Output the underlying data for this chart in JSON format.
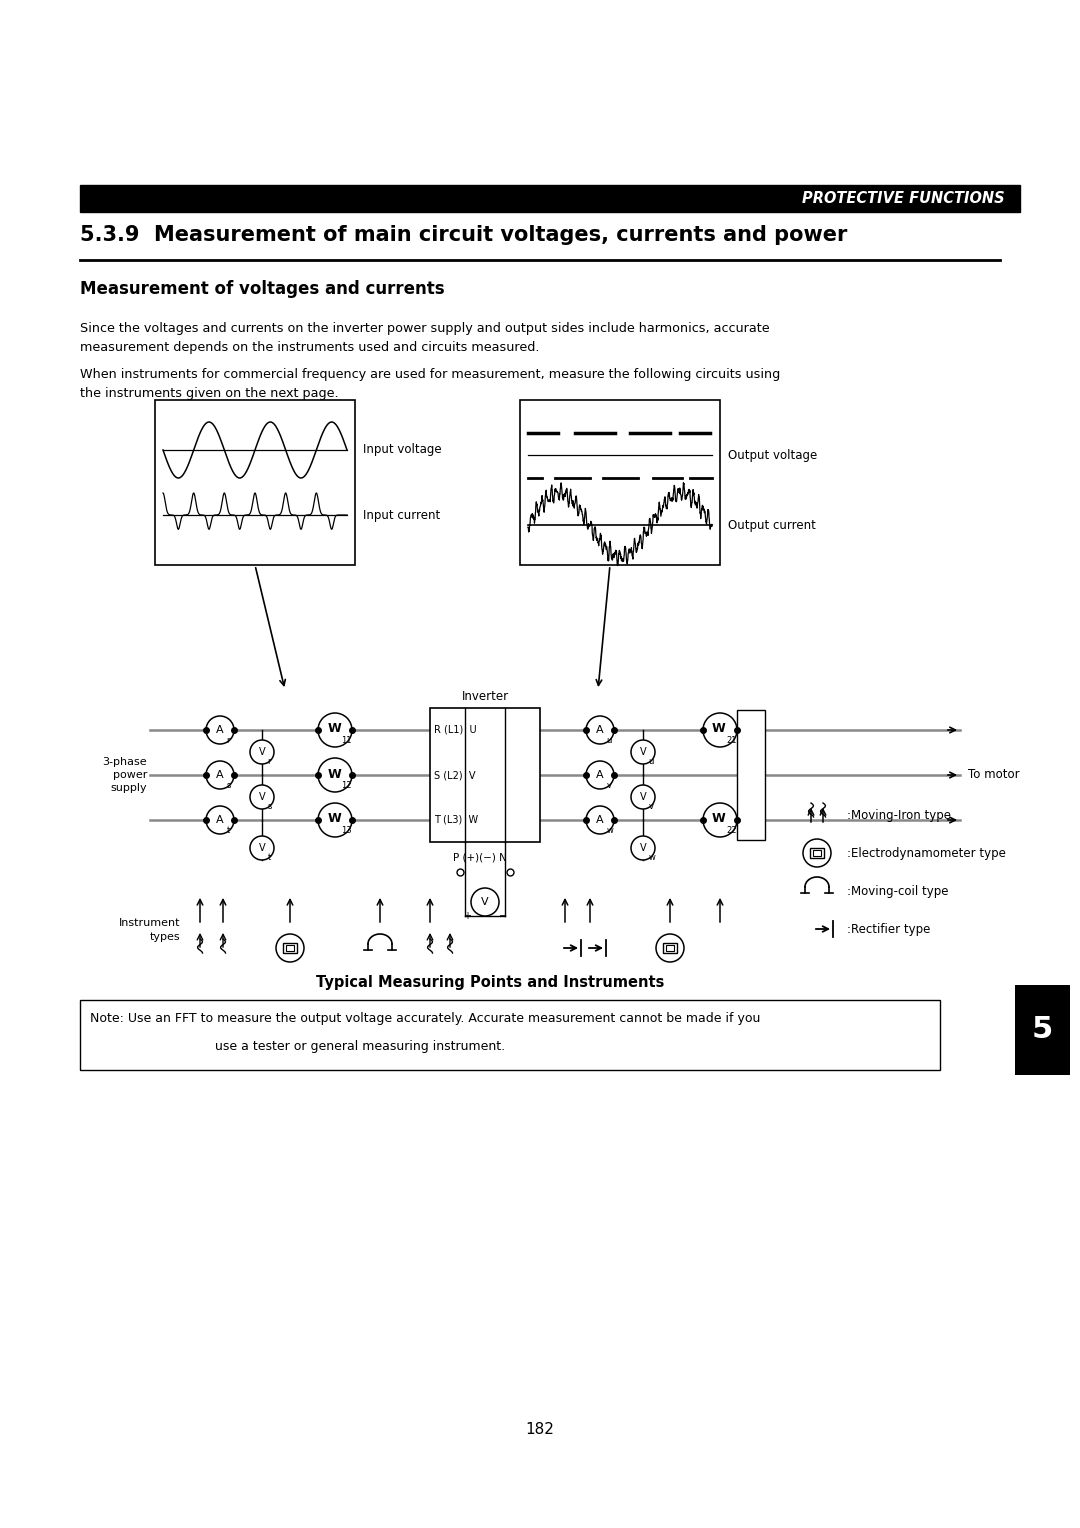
{
  "page_title_bar": "PROTECTIVE FUNCTIONS",
  "section_number": "5.3.9",
  "section_title": "Measurement of main circuit voltages, currents and power",
  "subsection_title": "Measurement of voltages and currents",
  "body_text_1": "Since the voltages and currents on the inverter power supply and output sides include harmonics, accurate\nmeasurement depends on the instruments used and circuits measured.",
  "body_text_2": "When instruments for commercial frequency are used for measurement, measure the following circuits using\nthe instruments given on the next page.",
  "label_input_voltage": "Input voltage",
  "label_input_current": "Input current",
  "label_output_voltage": "Output voltage",
  "label_output_current": "Output current",
  "diagram_caption": "Typical Measuring Points and Instruments",
  "note_text_1": "Note: Use an FFT to measure the output voltage accurately. Accurate measurement cannot be made if you",
  "note_text_2": "use a tester or general measuring instrument.",
  "page_number": "182",
  "tab_number": "5",
  "bg_color": "#ffffff",
  "text_color": "#000000",
  "header_bg": "#000000",
  "header_text_color": "#ffffff"
}
